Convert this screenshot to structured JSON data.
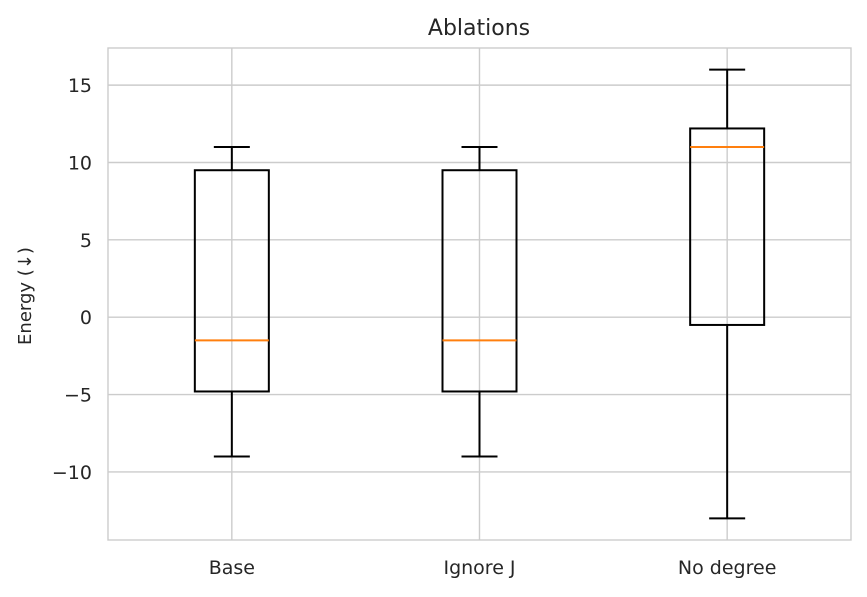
{
  "chart_data": {
    "type": "box",
    "title": "Ablations",
    "xlabel": "",
    "ylabel": "Energy (↓)",
    "ylim": [
      -14.4,
      17.4
    ],
    "yticks": [
      -10,
      -5,
      0,
      5,
      10,
      15
    ],
    "ytick_labels": [
      "−10",
      "−5",
      "0",
      "5",
      "10",
      "15"
    ],
    "categories": [
      "Base",
      "Ignore J",
      "No degree"
    ],
    "boxes": [
      {
        "label": "Base",
        "whisker_low": -9.0,
        "q1": -4.8,
        "median": -1.5,
        "q3": 9.5,
        "whisker_high": 11.0
      },
      {
        "label": "Ignore J",
        "whisker_low": -9.0,
        "q1": -4.8,
        "median": -1.5,
        "q3": 9.5,
        "whisker_high": 11.0
      },
      {
        "label": "No degree",
        "whisker_low": -13.0,
        "q1": -0.5,
        "median": 11.0,
        "q3": 12.2,
        "whisker_high": 16.0
      }
    ],
    "grid": true,
    "colors": {
      "box": "#000000",
      "median": "#ff7f0e",
      "grid": "#cccccc",
      "spine": "#cccccc",
      "text": "#262626"
    }
  }
}
